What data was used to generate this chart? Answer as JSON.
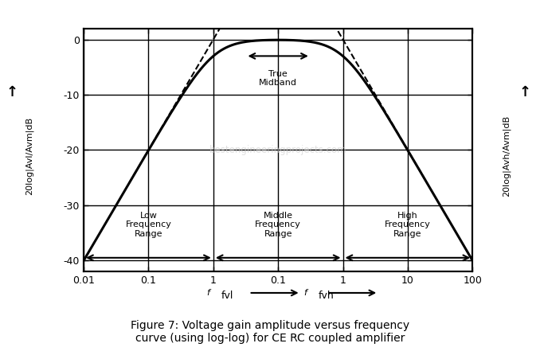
{
  "title": "Figure 7: Voltage gain amplitude versus frequency\ncurve (using log-log) for CE RC coupled amplifier",
  "ylabel_left": "20log|Avl/Avm|dB",
  "ylabel_right": "20log|Avh/Avm|dB",
  "xlabel_ticks": [
    "0.01",
    "0.1",
    "1",
    "0.1",
    "1",
    "10",
    "100"
  ],
  "yticks": [
    0,
    -10,
    -20,
    -30,
    -40
  ],
  "ylim": [
    -42,
    2
  ],
  "curve_color": "black",
  "grid_color": "black",
  "bg_color": "white",
  "dashed_color": "black",
  "low_freq_label": "Low\nFrequency\nRange",
  "mid_freq_label": "Middle\nFrequency\nRange",
  "high_freq_label": "High\nFrequency\nRange",
  "true_midband_label": "True\nMidband"
}
